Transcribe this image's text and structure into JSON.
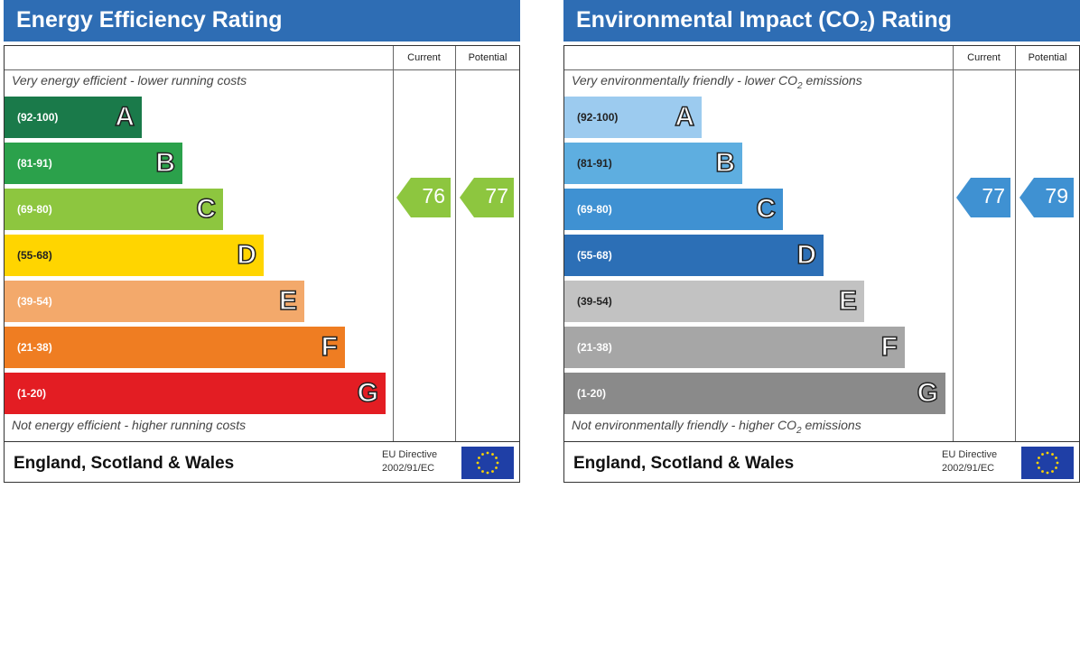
{
  "chart_data": [
    {
      "type": "bar",
      "title": "Energy Efficiency Rating",
      "column_labels": {
        "current": "Current",
        "potential": "Potential"
      },
      "note_top": "Very energy efficient - lower running costs",
      "note_bottom": "Not energy efficient - higher running costs",
      "categories": [
        "A",
        "B",
        "C",
        "D",
        "E",
        "F",
        "G"
      ],
      "bands": [
        {
          "letter": "A",
          "range": "(92-100)",
          "min": 92,
          "max": 100,
          "color": "#1a7a4a"
        },
        {
          "letter": "B",
          "range": "(81-91)",
          "min": 81,
          "max": 91,
          "color": "#2ba14b"
        },
        {
          "letter": "C",
          "range": "(69-80)",
          "min": 69,
          "max": 80,
          "color": "#8dc63f"
        },
        {
          "letter": "D",
          "range": "(55-68)",
          "min": 55,
          "max": 68,
          "color": "#ffd500"
        },
        {
          "letter": "E",
          "range": "(39-54)",
          "min": 39,
          "max": 54,
          "color": "#f3a96b"
        },
        {
          "letter": "F",
          "range": "(21-38)",
          "min": 21,
          "max": 38,
          "color": "#ef7d22"
        },
        {
          "letter": "G",
          "range": "(1-20)",
          "min": 1,
          "max": 20,
          "color": "#e31d23"
        }
      ],
      "current": {
        "value": 76,
        "band": "C",
        "color": "#8dc63f"
      },
      "potential": {
        "value": 77,
        "band": "C",
        "color": "#8dc63f"
      },
      "footer": {
        "region": "England, Scotland & Wales",
        "directive_line1": "EU Directive",
        "directive_line2": "2002/91/EC"
      }
    },
    {
      "type": "bar",
      "title": "Environmental Impact (CO",
      "title_sub": "2",
      "title_end": ") Rating",
      "column_labels": {
        "current": "Current",
        "potential": "Potential"
      },
      "note_top": "Very environmentally friendly - lower CO",
      "note_top_sub": "2",
      "note_top_end": " emissions",
      "note_bottom": "Not environmentally friendly - higher CO",
      "note_bottom_sub": "2",
      "note_bottom_end": " emissions",
      "categories": [
        "A",
        "B",
        "C",
        "D",
        "E",
        "F",
        "G"
      ],
      "bands": [
        {
          "letter": "A",
          "range": "(92-100)",
          "min": 92,
          "max": 100,
          "color": "#9ccbef"
        },
        {
          "letter": "B",
          "range": "(81-91)",
          "min": 81,
          "max": 91,
          "color": "#5eaee0"
        },
        {
          "letter": "C",
          "range": "(69-80)",
          "min": 69,
          "max": 80,
          "color": "#3f91d2"
        },
        {
          "letter": "D",
          "range": "(55-68)",
          "min": 55,
          "max": 68,
          "color": "#2c6fb6"
        },
        {
          "letter": "E",
          "range": "(39-54)",
          "min": 39,
          "max": 54,
          "color": "#c2c2c2"
        },
        {
          "letter": "F",
          "range": "(21-38)",
          "min": 21,
          "max": 38,
          "color": "#a6a6a6"
        },
        {
          "letter": "G",
          "range": "(1-20)",
          "min": 1,
          "max": 20,
          "color": "#8a8a8a"
        }
      ],
      "current": {
        "value": 77,
        "band": "C",
        "color": "#3f91d2"
      },
      "potential": {
        "value": 79,
        "band": "C",
        "color": "#3f91d2"
      },
      "footer": {
        "region": "England, Scotland & Wales",
        "directive_line1": "EU Directive",
        "directive_line2": "2002/91/EC"
      }
    }
  ]
}
